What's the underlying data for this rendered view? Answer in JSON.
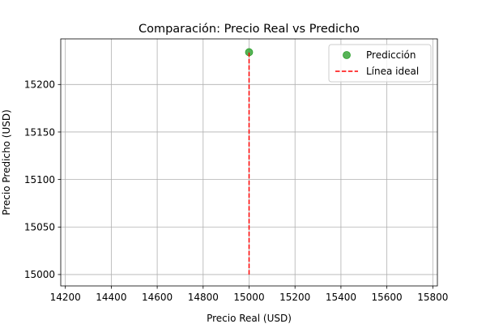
{
  "chart_data": {
    "type": "scatter",
    "title": "Comparación: Precio Real vs Predicho",
    "xlabel": "Precio Real (USD)",
    "ylabel": "Precio Predicho (USD)",
    "xlim": [
      14180,
      15820
    ],
    "ylim": [
      14988,
      15248
    ],
    "xticks": [
      14200,
      14400,
      14600,
      14800,
      15000,
      15200,
      15400,
      15600,
      15800
    ],
    "yticks": [
      15000,
      15050,
      15100,
      15150,
      15200
    ],
    "grid": true,
    "legend_position": "top-right",
    "series": [
      {
        "name": "Predicción",
        "kind": "scatter",
        "color": "#2ca02c",
        "points": [
          {
            "x": 15000,
            "y": 15234
          }
        ]
      },
      {
        "name": "Línea ideal",
        "kind": "line",
        "style": "dashed",
        "color": "#ff0000",
        "points": [
          {
            "x": 15000,
            "y": 15000
          },
          {
            "x": 15000,
            "y": 15234
          }
        ]
      }
    ]
  }
}
